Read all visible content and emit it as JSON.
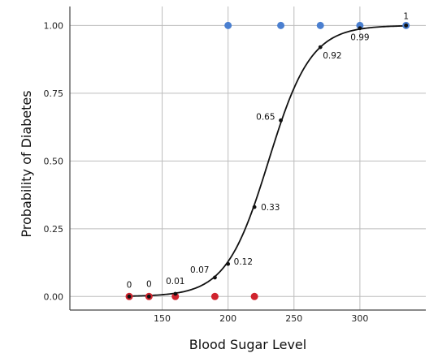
{
  "chart_data": {
    "type": "scatter",
    "title": "",
    "xlabel": "Blood Sugar Level",
    "ylabel": "Probability of Diabetes",
    "xlim": [
      80,
      350
    ],
    "ylim": [
      -0.05,
      1.07
    ],
    "xticks": [
      150,
      200,
      250,
      300
    ],
    "yticks": [
      0.0,
      0.25,
      0.5,
      0.75,
      1.0
    ],
    "ytick_labels": [
      "0.00",
      "0.25",
      "0.50",
      "0.75",
      "1.00"
    ],
    "grid": true,
    "colors": {
      "positive": "#4a7fd0",
      "negative": "#d0242e",
      "curve": "#111111",
      "grid": "#bdbdbd"
    },
    "observations": {
      "diabetic": [
        200,
        240,
        270,
        300,
        335
      ],
      "non_diabetic": [
        125,
        140,
        160,
        190,
        220
      ]
    },
    "fitted_points": {
      "x": [
        125,
        140,
        160,
        190,
        200,
        220,
        240,
        270,
        300,
        335
      ],
      "y": [
        0.0,
        0.0,
        0.01,
        0.07,
        0.12,
        0.33,
        0.65,
        0.92,
        0.99,
        1.0
      ],
      "labels": [
        "0",
        "0",
        "0.01",
        "0.07",
        "0.12",
        "0.33",
        "0.65",
        "0.92",
        "0.99",
        "1"
      ]
    }
  }
}
